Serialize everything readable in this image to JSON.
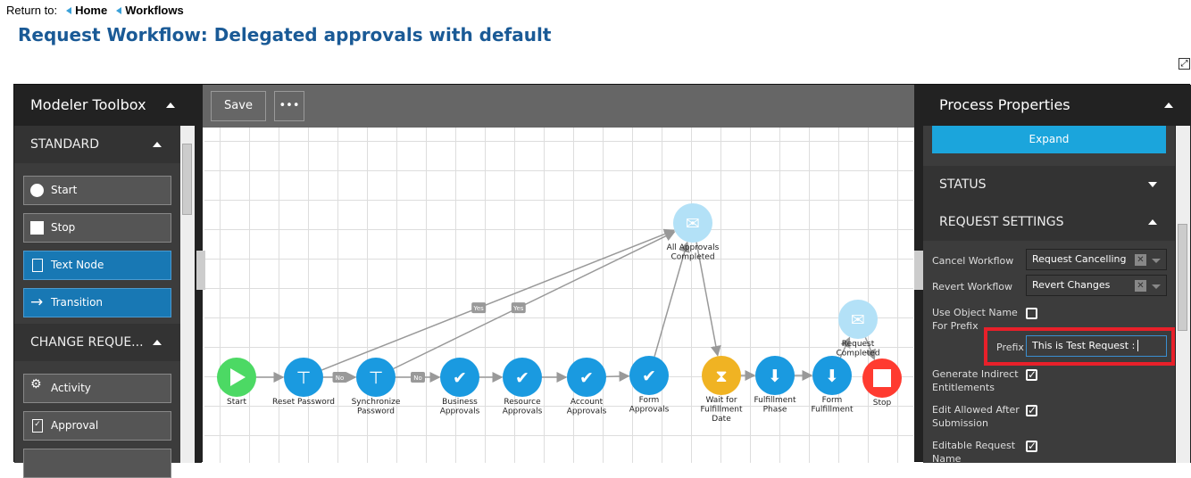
{
  "breadcrumb": {
    "prefix": "Return to:",
    "items": [
      "Home",
      "Workflows"
    ]
  },
  "page_title": "Request Workflow: Delegated approvals with default",
  "toolbox": {
    "title": "Modeler Toolbox",
    "sections": [
      {
        "label": "STANDARD",
        "items": [
          {
            "label": "Start",
            "icon": "circle-icon"
          },
          {
            "label": "Stop",
            "icon": "square-icon"
          },
          {
            "label": "Text Node",
            "icon": "document-icon"
          },
          {
            "label": "Transition",
            "icon": "arrow-right-icon"
          }
        ]
      },
      {
        "label": "CHANGE REQUE...",
        "items": [
          {
            "label": "Activity",
            "icon": "gears-icon"
          },
          {
            "label": "Approval",
            "icon": "clipboard-check-icon"
          }
        ]
      }
    ]
  },
  "toolbar": {
    "save_label": "Save",
    "more_label": "•••"
  },
  "workflow": {
    "colors": {
      "start": "#4cd964",
      "task": "#1a9ae0",
      "wait": "#f0b323",
      "event": "#b3e1f7",
      "stop": "#ff3b30",
      "edge": "#999999"
    },
    "nodes": [
      {
        "id": "start",
        "label": "Start",
        "type": "start"
      },
      {
        "id": "reset",
        "label": "Reset Password",
        "type": "task",
        "icon": "signpost-icon"
      },
      {
        "id": "sync",
        "label": "Synchronize\nPassword",
        "type": "task",
        "icon": "signpost-icon"
      },
      {
        "id": "business",
        "label": "Business\nApprovals",
        "type": "task",
        "icon": "folder-check-icon"
      },
      {
        "id": "resource",
        "label": "Resource\nApprovals",
        "type": "task",
        "icon": "folder-check-icon"
      },
      {
        "id": "account",
        "label": "Account\nApprovals",
        "type": "task",
        "icon": "folder-check-icon"
      },
      {
        "id": "form_appr",
        "label": "Form\nApprovals",
        "type": "task",
        "icon": "forms-check-icon"
      },
      {
        "id": "all_appr",
        "label": "All Approvals\nCompleted",
        "type": "event",
        "icon": "email-icon"
      },
      {
        "id": "wait",
        "label": "Wait for\nFulfillment\nDate",
        "type": "wait",
        "icon": "hourglass-icon"
      },
      {
        "id": "fulfill",
        "label": "Fulfillment\nPhase",
        "type": "task",
        "icon": "folder-download-icon"
      },
      {
        "id": "form_ful",
        "label": "Form\nFulfillment",
        "type": "task",
        "icon": "forms-download-icon"
      },
      {
        "id": "req_done",
        "label": "Request\nCompleted",
        "type": "event",
        "icon": "email-icon"
      },
      {
        "id": "stop",
        "label": "Stop",
        "type": "stop"
      }
    ],
    "edges": [
      [
        "start",
        "reset",
        ""
      ],
      [
        "reset",
        "sync",
        "No"
      ],
      [
        "sync",
        "business",
        "No"
      ],
      [
        "business",
        "resource",
        ""
      ],
      [
        "resource",
        "account",
        ""
      ],
      [
        "account",
        "form_appr",
        ""
      ],
      [
        "form_appr",
        "all_appr",
        ""
      ],
      [
        "reset",
        "all_appr",
        "Yes"
      ],
      [
        "sync",
        "all_appr",
        "Yes"
      ],
      [
        "all_appr",
        "wait",
        ""
      ],
      [
        "wait",
        "fulfill",
        ""
      ],
      [
        "fulfill",
        "form_ful",
        ""
      ],
      [
        "form_ful",
        "req_done",
        ""
      ],
      [
        "req_done",
        "stop",
        ""
      ]
    ]
  },
  "properties": {
    "title": "Process Properties",
    "expand_label": "Expand",
    "status_label": "STATUS",
    "request_settings_label": "REQUEST SETTINGS",
    "cancel_workflow": {
      "label": "Cancel Workflow",
      "value": "Request Cancelling"
    },
    "revert_workflow": {
      "label": "Revert Workflow",
      "value": "Revert Changes"
    },
    "use_object_name": {
      "label": "Use Object Name For Prefix",
      "checked": false
    },
    "prefix": {
      "label": "Prefix",
      "value": "This is Test Request :"
    },
    "generate_indirect": {
      "label": "Generate Indirect Entitlements",
      "checked": true
    },
    "edit_allowed": {
      "label": "Edit Allowed After Submission",
      "checked": true
    },
    "editable_name": {
      "label": "Editable Request Name",
      "checked": true
    },
    "highlight_color": "#e8202a",
    "accent": "#1ba5dc"
  }
}
